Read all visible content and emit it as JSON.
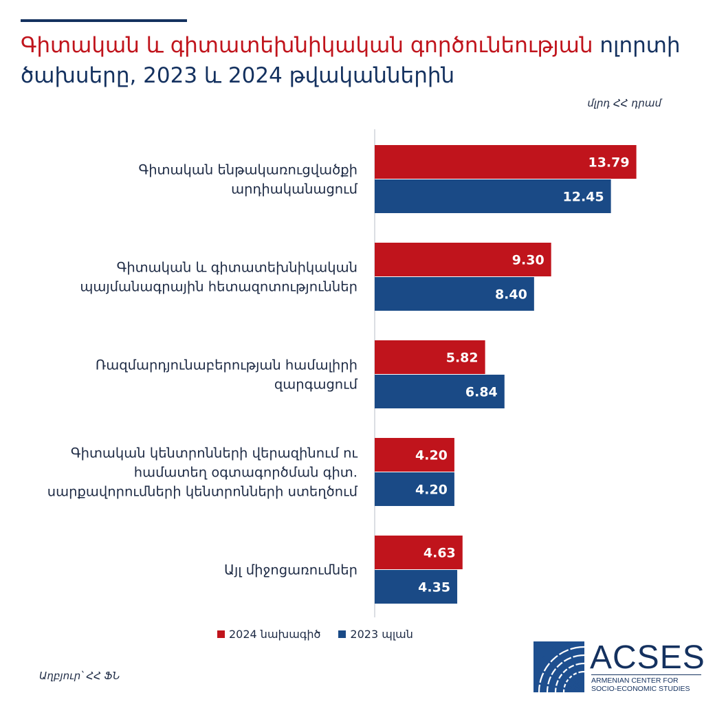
{
  "header": {
    "title_highlight": "Գիտական և գիտատեխնիկական գործունեության",
    "title_rest": " ոլորտի ծախսերը, 2023 և 2024 թվականներին",
    "unit": "մլրդ ՀՀ դրամ"
  },
  "colors": {
    "series_2024": "#c0141c",
    "series_2023": "#1a4a86",
    "axis": "#cfd3da"
  },
  "chart_data": {
    "type": "bar",
    "orientation": "horizontal",
    "title": "Գիտական և գիտատեխնիկական գործունեության ոլորտի ծախսերը, 2023 և 2024 թվականներին",
    "unit": "մլրդ ՀՀ դրամ",
    "categories": [
      [
        "Գիտական ենթակառուցվածքի",
        "արդիականացում"
      ],
      [
        "Գիտական և գիտատեխնիկական",
        "պայմանագրային հետազոտություններ"
      ],
      [
        "Ռազմարդյունաբերության համալիրի",
        "զարգացում"
      ],
      [
        "Գիտական կենտրոնների վերազինում ու",
        "համատեղ օգտագործման գիտ.",
        "սարքավորումների կենտրոնների ստեղծում"
      ],
      [
        "Այլ միջոցառումներ"
      ]
    ],
    "series": [
      {
        "name": "2024 նախագիծ",
        "color": "#c0141c",
        "values": [
          13.79,
          9.3,
          5.82,
          4.2,
          4.63
        ],
        "labels": [
          "13.79",
          "9.30",
          "5.82",
          "4.20",
          "4.63"
        ]
      },
      {
        "name": "2023 պլան",
        "color": "#1a4a86",
        "values": [
          12.45,
          8.4,
          6.84,
          4.2,
          4.35
        ],
        "labels": [
          "12.45",
          "8.40",
          "6.84",
          "4.20",
          "4.35"
        ]
      }
    ],
    "xlim": [
      0,
      14
    ],
    "grid": false,
    "legend": "bottom-center"
  },
  "legend": {
    "item_2024": "2024 նախագիծ",
    "item_2023": "2023 պլան"
  },
  "footer": {
    "source": "Աղբյուր՝ ՀՀ ՖՆ",
    "logo_name": "ACSES",
    "logo_sub_1": "ARMENIAN CENTER FOR",
    "logo_sub_2": "SOCIO-ECONOMIC STUDIES"
  }
}
